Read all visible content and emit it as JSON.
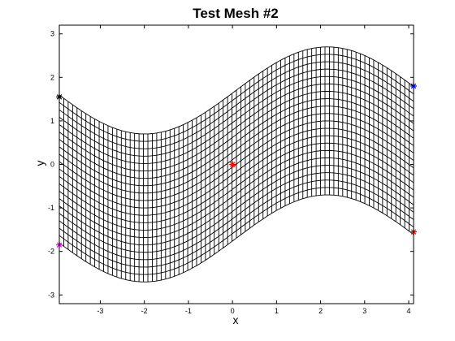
{
  "chart_data": {
    "type": "line",
    "title": "Test Mesh #2",
    "xlabel": "x",
    "ylabel": "y",
    "xlim": [
      -3.93,
      4.11
    ],
    "ylim": [
      -3.2,
      3.2
    ],
    "xticks": [
      -3,
      -2,
      -1,
      0,
      1,
      2,
      3,
      4
    ],
    "yticks": [
      -3,
      -2,
      -1,
      0,
      1,
      2,
      3
    ],
    "grid": false,
    "mesh": {
      "description_of_curves": "y = s * 2*pi/3.75*(?)",
      "x_range": [
        -3.93,
        4.11
      ],
      "lower_boundary_amplitude": 1,
      "s_range": [
        -1.7,
        1.7
      ],
      "centerline_amplitude": 1,
      "n_vertical_lines": 80,
      "n_horizontal_lines": 20
    },
    "markers": [
      {
        "color": "#000000",
        "x": -3.93,
        "y": 1.55
      },
      {
        "color": "#ff00ff",
        "x": -3.93,
        "y": -1.85
      },
      {
        "color": "#ff0000",
        "x": 0.0,
        "y": 0.0
      },
      {
        "color": "#0000ff",
        "x": 4.11,
        "y": 1.8
      },
      {
        "color": "#ff0000",
        "x": 4.11,
        "y": -1.55
      }
    ]
  }
}
